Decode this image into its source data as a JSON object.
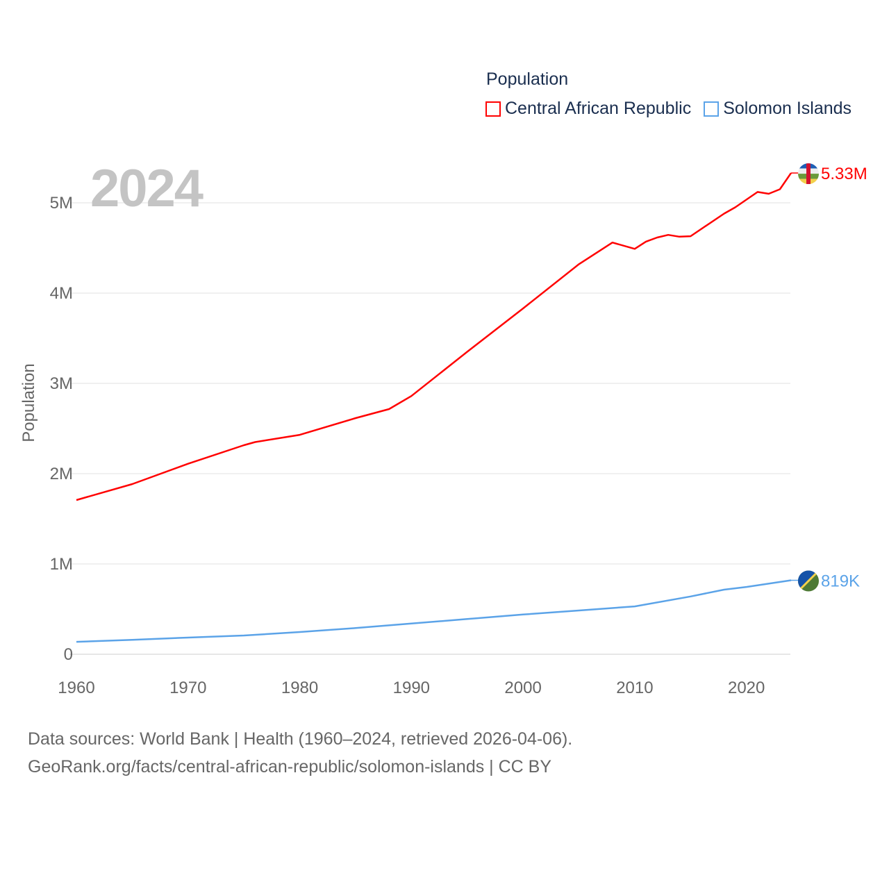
{
  "chart_data": {
    "type": "line",
    "title": "2024",
    "ylabel": "Population",
    "xlabel": "",
    "xlim": [
      1960,
      2024
    ],
    "ylim": [
      0,
      5500000
    ],
    "grid": true,
    "x_ticks": [
      1960,
      1970,
      1980,
      1990,
      2000,
      2010,
      2020
    ],
    "x_tick_labels": [
      "1960",
      "1970",
      "1980",
      "1990",
      "2000",
      "2010",
      "2020"
    ],
    "y_ticks": [
      0,
      1000000,
      2000000,
      3000000,
      4000000,
      5000000
    ],
    "y_tick_labels": [
      "0",
      "1M",
      "2M",
      "3M",
      "4M",
      "5M"
    ],
    "legend_title": "Population",
    "legend_placement": "top-right",
    "series": [
      {
        "name": "Central African Republic",
        "color": "#ff0000",
        "end_label": "5.33M",
        "flag_icon": "central-african-republic-flag-icon",
        "points": [
          [
            1960,
            1708000
          ],
          [
            1965,
            1885000
          ],
          [
            1970,
            2110000
          ],
          [
            1975,
            2315000
          ],
          [
            1976,
            2350000
          ],
          [
            1980,
            2430000
          ],
          [
            1985,
            2615000
          ],
          [
            1988,
            2715000
          ],
          [
            1990,
            2860000
          ],
          [
            1995,
            3350000
          ],
          [
            2000,
            3830000
          ],
          [
            2005,
            4320000
          ],
          [
            2008,
            4560000
          ],
          [
            2010,
            4490000
          ],
          [
            2011,
            4570000
          ],
          [
            2012,
            4615000
          ],
          [
            2013,
            4645000
          ],
          [
            2014,
            4625000
          ],
          [
            2015,
            4630000
          ],
          [
            2018,
            4880000
          ],
          [
            2019,
            4950000
          ],
          [
            2021,
            5120000
          ],
          [
            2022,
            5100000
          ],
          [
            2023,
            5150000
          ],
          [
            2024,
            5330000
          ]
        ]
      },
      {
        "name": "Solomon Islands",
        "color": "#5ba3e8",
        "end_label": "819K",
        "flag_icon": "solomon-islands-flag-icon",
        "points": [
          [
            1960,
            138000
          ],
          [
            1965,
            160000
          ],
          [
            1970,
            185000
          ],
          [
            1975,
            208000
          ],
          [
            1980,
            246000
          ],
          [
            1985,
            290000
          ],
          [
            1990,
            340000
          ],
          [
            1995,
            390000
          ],
          [
            2000,
            440000
          ],
          [
            2005,
            485000
          ],
          [
            2010,
            530000
          ],
          [
            2015,
            640000
          ],
          [
            2018,
            715000
          ],
          [
            2020,
            745000
          ],
          [
            2024,
            819000
          ]
        ]
      }
    ]
  },
  "footer": {
    "line1": "Data sources: World Bank | Health (1960–2024, retrieved 2026-04-06).",
    "line2": "GeoRank.org/facts/central-african-republic/solomon-islands | CC BY"
  }
}
